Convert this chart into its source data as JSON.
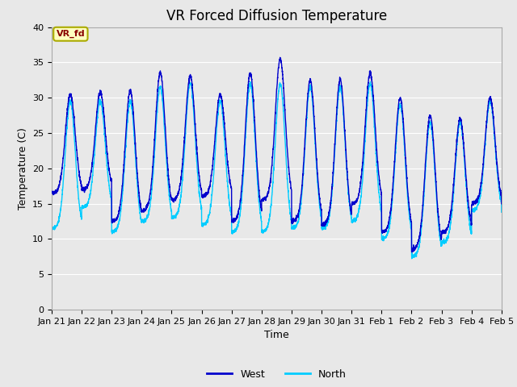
{
  "title": "VR Forced Diffusion Temperature",
  "xlabel": "Time",
  "ylabel": "Temperature (C)",
  "ylim": [
    0,
    40
  ],
  "yticks": [
    0,
    5,
    10,
    15,
    20,
    25,
    30,
    35,
    40
  ],
  "x_labels": [
    "Jan 21",
    "Jan 22",
    "Jan 23",
    "Jan 24",
    "Jan 25",
    "Jan 26",
    "Jan 27",
    "Jan 28",
    "Jan 29",
    "Jan 30",
    "Jan 31",
    "Feb 1",
    "Feb 2",
    "Feb 3",
    "Feb 4",
    "Feb 5"
  ],
  "west_color": "#0000CC",
  "north_color": "#00CCFF",
  "annotation_text": "VR_fd",
  "annotation_bg": "#FFFFC0",
  "annotation_border": "#AAAA00",
  "annotation_fg": "#880000",
  "plot_bg": "#E8E8E8",
  "fig_bg": "#E8E8E8",
  "grid_color": "#FFFFFF",
  "title_fontsize": 12,
  "axis_fontsize": 9,
  "tick_fontsize": 8,
  "n_days": 15,
  "west_peaks": [
    30.5,
    30.8,
    31.0,
    33.5,
    33.0,
    30.5,
    33.5,
    35.5,
    32.5,
    32.5,
    33.5,
    30.0,
    27.5,
    27.0,
    30.0
  ],
  "west_mins": [
    16.5,
    17.0,
    12.5,
    14.0,
    15.5,
    16.0,
    12.5,
    15.5,
    12.5,
    12.0,
    15.0,
    11.0,
    8.5,
    11.0,
    15.0
  ],
  "north_peaks": [
    29.5,
    29.5,
    29.5,
    31.5,
    32.0,
    29.5,
    32.0,
    32.0,
    31.5,
    31.5,
    32.0,
    29.0,
    26.5,
    26.5,
    29.5
  ],
  "north_mins": [
    11.5,
    14.5,
    11.0,
    12.5,
    13.0,
    12.0,
    11.0,
    11.0,
    11.5,
    11.5,
    12.5,
    10.0,
    7.5,
    9.5,
    14.0
  ]
}
